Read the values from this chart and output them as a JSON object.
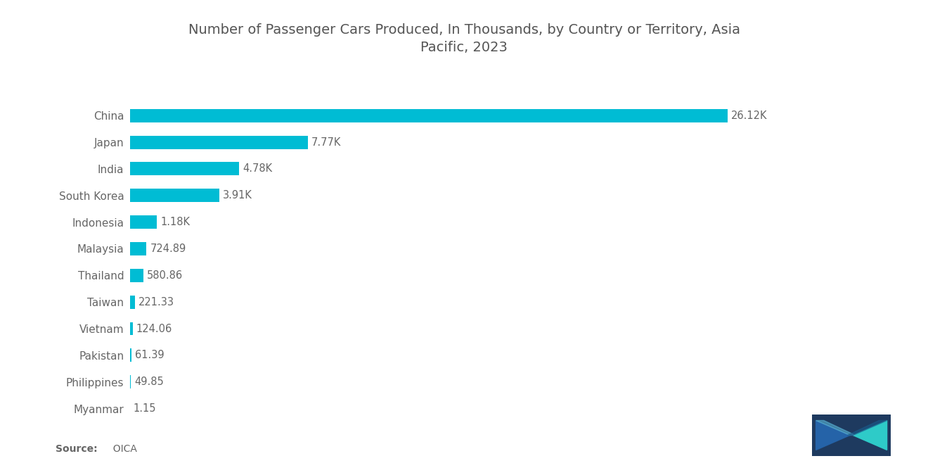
{
  "title": "Number of Passenger Cars Produced, In Thousands, by Country or Territory, Asia\nPacific, 2023",
  "countries": [
    "China",
    "Japan",
    "India",
    "South Korea",
    "Indonesia",
    "Malaysia",
    "Thailand",
    "Taiwan",
    "Vietnam",
    "Pakistan",
    "Philippines",
    "Myanmar"
  ],
  "values": [
    26120,
    7770,
    4780,
    3910,
    1180,
    724.89,
    580.86,
    221.33,
    124.06,
    61.39,
    49.85,
    1.15
  ],
  "labels": [
    "26.12K",
    "7.77K",
    "4.78K",
    "3.91K",
    "1.18K",
    "724.89",
    "580.86",
    "221.33",
    "124.06",
    "61.39",
    "49.85",
    "1.15"
  ],
  "bar_color": "#00BCD4",
  "background_color": "#ffffff",
  "title_color": "#555555",
  "label_color": "#666666",
  "source_bold_text": "Source:",
  "source_normal_text": "  OICA",
  "title_fontsize": 14,
  "label_fontsize": 10.5,
  "tick_fontsize": 11,
  "xlim": [
    0,
    30000
  ],
  "bar_height": 0.5,
  "logo_bg_color": "#1e3a5f",
  "logo_cyan_color": "#2ecbc8",
  "logo_blue_color": "#2563a8"
}
